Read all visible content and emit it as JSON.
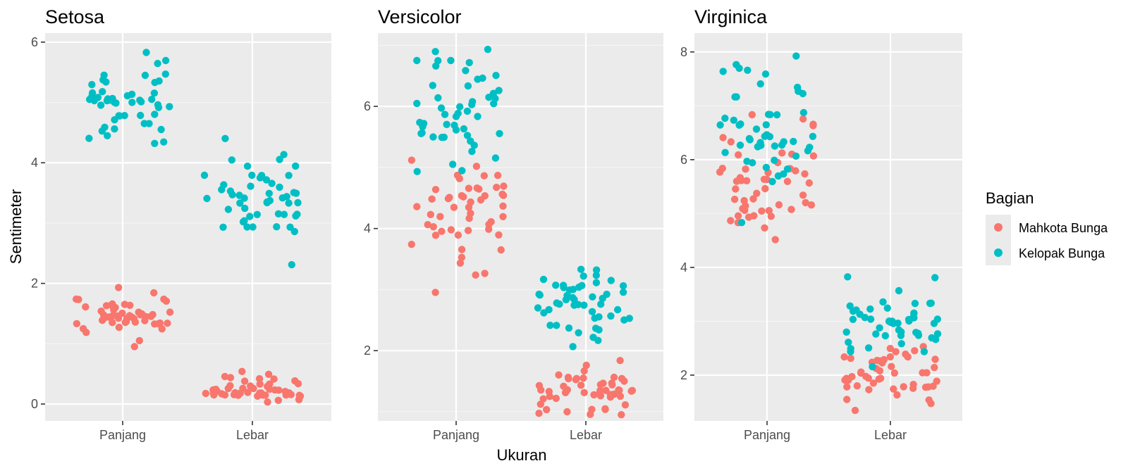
{
  "chart_data": {
    "type": "scatter",
    "x_axis_title": "Ukuran",
    "y_axis_title": "Sentimeter",
    "categories": [
      "Panjang",
      "Lebar"
    ],
    "legend": {
      "title": "Bagian",
      "position": "right",
      "entries": [
        {
          "name": "Mahkota Bunga",
          "color": "#F8766D"
        },
        {
          "name": "Kelopak Bunga",
          "color": "#00BFC4"
        }
      ]
    },
    "panels": [
      {
        "title": "Setosa",
        "ylim": [
          -0.28,
          6.15
        ],
        "yticks": [
          0,
          2,
          4,
          6
        ],
        "series": [
          {
            "name": "Mahkota Bunga",
            "color": "#F8766D",
            "Panjang": [
              1.4,
              1.4,
              1.3,
              1.5,
              1.4,
              1.7,
              1.4,
              1.5,
              1.4,
              1.5,
              1.5,
              1.6,
              1.4,
              1.1,
              1.2,
              1.5,
              1.3,
              1.4,
              1.7,
              1.5,
              1.7,
              1.5,
              1.0,
              1.7,
              1.9,
              1.6,
              1.6,
              1.5,
              1.4,
              1.6,
              1.6,
              1.5,
              1.5,
              1.4,
              1.5,
              1.2,
              1.3,
              1.4,
              1.3,
              1.5,
              1.3,
              1.3,
              1.3,
              1.6,
              1.9,
              1.4,
              1.6,
              1.4,
              1.5,
              1.4
            ],
            "Lebar": [
              0.2,
              0.2,
              0.2,
              0.2,
              0.2,
              0.4,
              0.3,
              0.2,
              0.2,
              0.1,
              0.2,
              0.2,
              0.1,
              0.1,
              0.2,
              0.4,
              0.4,
              0.3,
              0.3,
              0.3,
              0.2,
              0.4,
              0.2,
              0.5,
              0.2,
              0.2,
              0.4,
              0.2,
              0.2,
              0.2,
              0.2,
              0.4,
              0.1,
              0.2,
              0.2,
              0.2,
              0.2,
              0.1,
              0.2,
              0.2,
              0.3,
              0.3,
              0.2,
              0.6,
              0.4,
              0.3,
              0.2,
              0.2,
              0.2,
              0.2
            ]
          },
          {
            "name": "Kelopak Bunga",
            "color": "#00BFC4",
            "Panjang": [
              5.1,
              4.9,
              4.7,
              4.6,
              5.0,
              5.4,
              4.6,
              5.0,
              4.4,
              4.9,
              5.4,
              4.8,
              4.8,
              4.3,
              5.8,
              5.7,
              5.4,
              5.1,
              5.7,
              5.1,
              5.4,
              5.1,
              4.6,
              5.1,
              4.8,
              5.0,
              5.0,
              5.2,
              5.2,
              4.7,
              4.8,
              5.4,
              5.2,
              5.5,
              4.9,
              5.0,
              5.5,
              4.9,
              4.4,
              5.1,
              5.0,
              4.5,
              4.4,
              5.0,
              5.1,
              4.8,
              5.1,
              4.6,
              5.3,
              5.0
            ],
            "Lebar": [
              3.5,
              3.0,
              3.2,
              3.1,
              3.6,
              3.9,
              3.4,
              3.4,
              2.9,
              3.1,
              3.7,
              3.4,
              3.0,
              3.0,
              4.0,
              4.4,
              3.9,
              3.5,
              3.8,
              3.8,
              3.4,
              3.7,
              3.6,
              3.3,
              3.4,
              3.0,
              3.4,
              3.5,
              3.4,
              3.2,
              3.1,
              3.4,
              4.1,
              4.2,
              3.1,
              3.2,
              3.5,
              3.6,
              3.0,
              3.4,
              3.5,
              2.3,
              3.2,
              3.5,
              3.8,
              3.0,
              3.8,
              3.2,
              3.7,
              3.3
            ]
          }
        ]
      },
      {
        "title": "Versicolor",
        "ylim": [
          0.85,
          7.2
        ],
        "yticks": [
          2,
          4,
          6
        ],
        "series": [
          {
            "name": "Mahkota Bunga",
            "color": "#F8766D",
            "Panjang": [
              4.7,
              4.5,
              4.9,
              4.0,
              4.6,
              4.5,
              4.7,
              3.3,
              4.6,
              3.9,
              3.5,
              4.2,
              4.0,
              4.7,
              3.6,
              4.4,
              4.5,
              4.1,
              4.5,
              3.9,
              4.8,
              4.0,
              4.9,
              4.7,
              4.3,
              4.4,
              4.8,
              5.0,
              4.5,
              3.5,
              3.8,
              3.7,
              3.9,
              5.1,
              4.5,
              4.5,
              4.7,
              4.4,
              4.1,
              4.0,
              4.4,
              4.6,
              4.0,
              3.3,
              4.2,
              4.2,
              4.2,
              4.3,
              3.0,
              4.1
            ],
            "Lebar": [
              1.4,
              1.5,
              1.5,
              1.3,
              1.5,
              1.3,
              1.6,
              1.0,
              1.3,
              1.4,
              1.0,
              1.5,
              1.0,
              1.4,
              1.3,
              1.4,
              1.5,
              1.0,
              1.5,
              1.1,
              1.8,
              1.3,
              1.5,
              1.2,
              1.3,
              1.4,
              1.4,
              1.7,
              1.5,
              1.0,
              1.1,
              1.0,
              1.2,
              1.6,
              1.5,
              1.6,
              1.5,
              1.3,
              1.3,
              1.3,
              1.2,
              1.4,
              1.2,
              1.0,
              1.3,
              1.2,
              1.3,
              1.3,
              1.1,
              1.3
            ]
          },
          {
            "name": "Kelopak Bunga",
            "color": "#00BFC4",
            "Panjang": [
              7.0,
              6.4,
              6.9,
              5.5,
              6.5,
              5.7,
              6.3,
              4.9,
              6.6,
              5.2,
              5.0,
              5.9,
              6.0,
              6.1,
              5.6,
              6.7,
              5.6,
              5.8,
              6.2,
              5.6,
              5.9,
              6.1,
              6.3,
              6.1,
              6.4,
              6.6,
              6.8,
              6.7,
              6.0,
              5.7,
              5.5,
              5.5,
              5.8,
              6.0,
              5.4,
              6.0,
              6.7,
              6.3,
              5.6,
              5.5,
              5.5,
              6.1,
              5.8,
              5.0,
              5.6,
              5.7,
              5.7,
              6.2,
              5.1,
              5.7
            ],
            "Lebar": [
              3.2,
              3.2,
              3.1,
              2.3,
              2.8,
              2.8,
              3.3,
              2.4,
              2.9,
              2.7,
              2.0,
              3.0,
              2.2,
              2.9,
              2.9,
              3.1,
              3.0,
              2.7,
              2.2,
              2.5,
              3.2,
              2.8,
              2.5,
              2.8,
              2.9,
              3.0,
              2.8,
              3.0,
              2.9,
              2.6,
              2.4,
              2.4,
              2.7,
              2.7,
              3.0,
              3.4,
              3.1,
              2.3,
              3.0,
              2.5,
              2.6,
              3.0,
              2.6,
              2.3,
              2.7,
              3.0,
              2.9,
              2.9,
              2.5,
              2.8
            ]
          }
        ]
      },
      {
        "title": "Virginica",
        "ylim": [
          1.15,
          8.35
        ],
        "yticks": [
          2,
          4,
          6,
          8
        ],
        "series": [
          {
            "name": "Mahkota Bunga",
            "color": "#F8766D",
            "Panjang": [
              6.0,
              5.1,
              5.9,
              5.6,
              5.8,
              6.6,
              4.5,
              6.3,
              5.8,
              6.1,
              5.1,
              5.3,
              5.5,
              5.0,
              5.1,
              5.3,
              5.5,
              6.7,
              6.9,
              5.0,
              5.7,
              4.9,
              6.7,
              4.9,
              5.7,
              6.0,
              4.8,
              4.9,
              5.6,
              5.8,
              6.1,
              6.4,
              5.6,
              5.1,
              5.6,
              6.1,
              5.6,
              5.5,
              4.8,
              5.4,
              5.6,
              5.1,
              5.1,
              5.9,
              5.7,
              5.2,
              5.0,
              5.2,
              5.4,
              5.1
            ],
            "Lebar": [
              2.5,
              1.9,
              2.1,
              1.8,
              2.2,
              2.1,
              1.7,
              1.8,
              1.8,
              2.5,
              2.0,
              1.9,
              2.1,
              2.0,
              2.4,
              2.3,
              1.8,
              2.2,
              2.3,
              1.5,
              2.3,
              2.0,
              2.0,
              1.8,
              2.1,
              1.8,
              1.8,
              1.8,
              2.1,
              1.6,
              1.9,
              2.0,
              2.2,
              1.5,
              1.4,
              2.3,
              2.4,
              1.8,
              1.8,
              2.1,
              2.4,
              2.3,
              1.9,
              2.3,
              2.5,
              2.3,
              1.9,
              2.0,
              2.3,
              1.8
            ]
          },
          {
            "name": "Kelopak Bunga",
            "color": "#00BFC4",
            "Panjang": [
              6.3,
              5.8,
              7.1,
              6.3,
              6.5,
              7.6,
              4.9,
              7.3,
              6.7,
              7.2,
              6.5,
              6.4,
              6.8,
              5.7,
              5.8,
              6.4,
              6.5,
              7.7,
              7.7,
              6.0,
              6.9,
              5.6,
              7.7,
              6.3,
              6.7,
              7.2,
              6.2,
              6.1,
              6.4,
              7.2,
              7.4,
              7.9,
              6.4,
              6.3,
              6.1,
              7.7,
              6.3,
              6.4,
              6.0,
              6.9,
              6.7,
              6.9,
              5.8,
              6.8,
              6.7,
              6.7,
              6.3,
              6.5,
              6.2,
              5.9
            ],
            "Lebar": [
              3.3,
              2.7,
              3.0,
              2.9,
              3.0,
              3.0,
              2.5,
              2.9,
              2.5,
              3.6,
              3.2,
              2.7,
              3.0,
              2.5,
              2.8,
              3.2,
              3.0,
              3.8,
              2.6,
              2.2,
              3.2,
              2.8,
              2.8,
              2.7,
              3.3,
              3.2,
              2.8,
              3.0,
              2.8,
              3.0,
              2.8,
              3.8,
              2.8,
              2.8,
              2.6,
              3.0,
              3.4,
              3.1,
              3.0,
              3.1,
              3.1,
              3.1,
              2.7,
              3.2,
              3.3,
              3.0,
              2.5,
              3.0,
              3.4,
              3.0
            ]
          }
        ]
      }
    ]
  }
}
